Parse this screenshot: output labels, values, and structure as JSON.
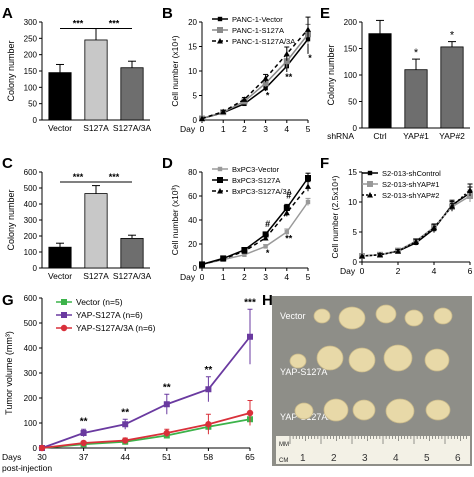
{
  "figure": {
    "panel_letters": [
      "A",
      "B",
      "C",
      "D",
      "E",
      "F",
      "G",
      "H"
    ],
    "photo": {
      "group_labels": [
        "Vector",
        "YAP-S127A",
        "YAP-S127A/3A"
      ],
      "ruler_unit_top": "MM",
      "ruler_unit_bottom": "CM",
      "ruler_numbers": [
        "1",
        "2",
        "3",
        "4",
        "5",
        "6"
      ],
      "tumor_color": "#e8d9a8",
      "background_color": "#8e8e88"
    }
  },
  "chart_data": [
    {
      "panel": "A",
      "type": "bar",
      "categories": [
        "Vector",
        "S127A",
        "S127A/3A"
      ],
      "values": [
        145,
        245,
        160
      ],
      "errors": [
        25,
        35,
        20
      ],
      "colors": [
        "#000000",
        "#c8c8c8",
        "#6e6e6e"
      ],
      "ylabel": "Colony number",
      "ylim": [
        0,
        300
      ],
      "yticks": [
        "0",
        "50",
        "100",
        "150",
        "200",
        "250",
        "300"
      ],
      "significance": [
        "***",
        "***"
      ]
    },
    {
      "panel": "B",
      "type": "line",
      "x": [
        0,
        1,
        2,
        3,
        4,
        5
      ],
      "xticks": [
        "0",
        "1",
        "2",
        "3",
        "4",
        "5"
      ],
      "xlabel": "Day",
      "ylabel": "Cell number (x10⁴)",
      "ylim": [
        0,
        20
      ],
      "yticks": [
        "0",
        "5",
        "10",
        "15",
        "20"
      ],
      "series": [
        {
          "name": "PANC-1-Vector",
          "values": [
            0.3,
            1.5,
            3.3,
            6.5,
            11,
            16.5
          ],
          "errors": [
            0,
            0.2,
            0.3,
            0.6,
            1.2,
            3
          ],
          "color": "#000000",
          "dash": ""
        },
        {
          "name": "PANC-1-S127A",
          "values": [
            0.3,
            1.6,
            3.8,
            7.5,
            12,
            17.5
          ],
          "errors": [
            0,
            0.2,
            0.4,
            0.7,
            1.3,
            2
          ],
          "color": "#8a8a8a",
          "dash": ""
        },
        {
          "name": "PANC-1-S127A/3A",
          "values": [
            0.3,
            1.7,
            4.2,
            8.5,
            13.5,
            18.5
          ],
          "errors": [
            0,
            0.2,
            0.4,
            0.8,
            1.4,
            2.5
          ],
          "color": "#000000",
          "dash": "4,3"
        }
      ],
      "annotations": [
        {
          "text": "*",
          "x": 3,
          "y": 4.4
        },
        {
          "text": "**",
          "x": 4,
          "y": 8.2
        },
        {
          "text": "*",
          "x": 5,
          "y": 12
        }
      ]
    },
    {
      "panel": "C",
      "type": "bar",
      "categories": [
        "Vector",
        "S127A",
        "S127A/3A"
      ],
      "values": [
        130,
        465,
        185
      ],
      "errors": [
        25,
        50,
        20
      ],
      "colors": [
        "#000000",
        "#c8c8c8",
        "#6e6e6e"
      ],
      "ylabel": "Colony number",
      "ylim": [
        0,
        600
      ],
      "yticks": [
        "0",
        "100",
        "200",
        "300",
        "400",
        "500",
        "600"
      ],
      "significance": [
        "***",
        "***"
      ]
    },
    {
      "panel": "D",
      "type": "line",
      "x": [
        0,
        1,
        2,
        3,
        4,
        5
      ],
      "xticks": [
        "0",
        "1",
        "2",
        "3",
        "4",
        "5"
      ],
      "xlabel": "Day",
      "ylabel": "Cell number (x10³)",
      "ylim": [
        0,
        80
      ],
      "yticks": [
        "0",
        "20",
        "40",
        "60",
        "80"
      ],
      "series": [
        {
          "name": "BxPC3-Vector",
          "values": [
            3,
            7,
            11,
            18,
            30,
            55
          ],
          "errors": [
            0,
            0.5,
            1,
            1.5,
            2.5,
            3
          ],
          "color": "#9a9a9a",
          "dash": ""
        },
        {
          "name": "BxPC3-S127A",
          "values": [
            3,
            8,
            15,
            28,
            50,
            75
          ],
          "errors": [
            0,
            0.6,
            1.2,
            2,
            3,
            4
          ],
          "color": "#000000",
          "dash": ""
        },
        {
          "name": "BxPC3-S127A/3A",
          "values": [
            3,
            7.5,
            14,
            25,
            46,
            68
          ],
          "errors": [
            0,
            0.6,
            1.2,
            2,
            3,
            4
          ],
          "color": "#000000",
          "dash": "4,3"
        }
      ],
      "annotations": [
        {
          "text": "#",
          "x": 3,
          "y": 34
        },
        {
          "text": "*",
          "x": 3,
          "y": 10
        },
        {
          "text": "#",
          "x": 4,
          "y": 58
        },
        {
          "text": "**",
          "x": 4,
          "y": 22
        }
      ]
    },
    {
      "panel": "E",
      "type": "bar",
      "categories": [
        "Ctrl",
        "YAP#1",
        "YAP#2"
      ],
      "category_prefix": "shRNA",
      "values": [
        178,
        110,
        153
      ],
      "errors": [
        25,
        20,
        10
      ],
      "colors": [
        "#000000",
        "#6e6e6e",
        "#6e6e6e"
      ],
      "ylabel": "Colony number",
      "ylim": [
        0,
        200
      ],
      "yticks": [
        "0",
        "50",
        "100",
        "150",
        "200"
      ],
      "significance": [
        "*",
        "*"
      ]
    },
    {
      "panel": "F",
      "type": "line",
      "x": [
        0,
        1,
        2,
        3,
        4,
        5,
        6
      ],
      "xticks": [
        "0",
        "2",
        "4",
        "6"
      ],
      "xlabel": "Day",
      "ylabel": "Cell number (2.5x10⁴)",
      "ylim": [
        0,
        15
      ],
      "yticks": [
        "0",
        "5",
        "10",
        "15"
      ],
      "series": [
        {
          "name": "S2-013-shControl",
          "values": [
            1,
            1.2,
            1.8,
            3.2,
            5.5,
            9.5,
            11.5
          ],
          "errors": [
            0,
            0.2,
            0.3,
            0.4,
            0.6,
            0.8,
            1.0
          ],
          "color": "#000000",
          "dash": ""
        },
        {
          "name": "S2-013-shYAP#1",
          "values": [
            1,
            1.2,
            1.9,
            3.5,
            5.8,
            9.2,
            11
          ],
          "errors": [
            0,
            0.2,
            0.3,
            0.4,
            0.6,
            0.8,
            1.0
          ],
          "color": "#999999",
          "dash": ""
        },
        {
          "name": "S2-013-shYAP#2",
          "values": [
            1,
            1.2,
            1.8,
            3.4,
            5.7,
            9.3,
            12
          ],
          "errors": [
            0,
            0.2,
            0.3,
            0.4,
            0.6,
            0.8,
            1.0
          ],
          "color": "#000000",
          "dash": "2,2"
        }
      ],
      "annotations": []
    },
    {
      "panel": "G",
      "type": "line",
      "x": [
        30,
        37,
        44,
        51,
        58,
        65
      ],
      "xticks": [
        "30",
        "37",
        "44",
        "51",
        "58",
        "65"
      ],
      "xlabel": "Days",
      "xlabel2": "post-injection",
      "ylabel": "Tumor volume (mm³)",
      "ylim": [
        0,
        600
      ],
      "yticks": [
        "0",
        "100",
        "200",
        "300",
        "400",
        "500",
        "600"
      ],
      "series": [
        {
          "name": "Vector (n=5)",
          "values": [
            0,
            15,
            25,
            50,
            85,
            115
          ],
          "errors": [
            0,
            5,
            5,
            10,
            15,
            20
          ],
          "color": "#3cb34a",
          "marker": "square"
        },
        {
          "name": "YAP-S127A (n=6)",
          "values": [
            0,
            60,
            95,
            175,
            235,
            445
          ],
          "errors": [
            0,
            15,
            20,
            40,
            50,
            110
          ],
          "color": "#6a3aa0",
          "marker": "square"
        },
        {
          "name": "YAP-S127A/3A (n=6)",
          "values": [
            0,
            20,
            30,
            60,
            95,
            140
          ],
          "errors": [
            0,
            8,
            10,
            15,
            40,
            50
          ],
          "color": "#d9303a",
          "marker": "circle"
        }
      ],
      "annotations": [
        {
          "text": "**",
          "x": 37,
          "y": 95
        },
        {
          "text": "**",
          "x": 44,
          "y": 130
        },
        {
          "text": "**",
          "x": 51,
          "y": 230
        },
        {
          "text": "**",
          "x": 58,
          "y": 300
        },
        {
          "text": "***",
          "x": 65,
          "y": 570
        }
      ]
    }
  ]
}
